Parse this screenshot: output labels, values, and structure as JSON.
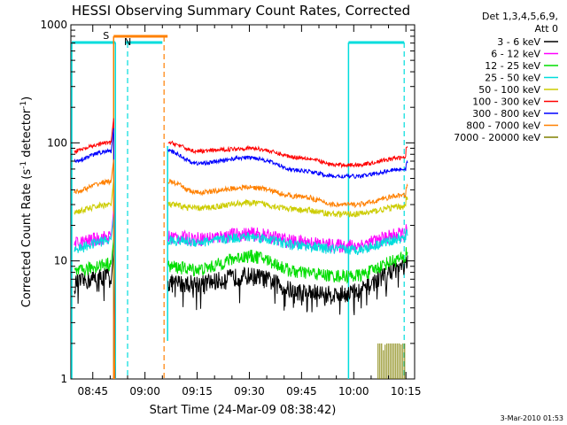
{
  "chart_data": {
    "type": "line",
    "title": "HESSI Observing Summary Count Rates, Corrected",
    "xlabel": "Start Time (24-Mar-09 08:38:42)",
    "ylabel_main": "Corrected Count Rate (s",
    "ylabel_sup1": "-1",
    "ylabel_mid": " detector",
    "ylabel_sup2": "-1",
    "ylabel_end": ")",
    "y_scale": "log",
    "ylim": [
      1,
      1000
    ],
    "xlim": [
      "08:38:42",
      "10:17:30"
    ],
    "x_ticks": [
      "08:45",
      "09:00",
      "09:15",
      "09:30",
      "09:45",
      "10:00",
      "10:15"
    ],
    "y_ticks": [
      "1",
      "10",
      "100",
      "1000"
    ],
    "legend_header": [
      "Det 1,3,4,5,6,9,",
      "Att 0"
    ],
    "legend_placement": "right",
    "series": [
      {
        "name": "3 - 6 keV",
        "color": "#000000",
        "levels": [
          6.5,
          7.5,
          6.5,
          6.5,
          7.5,
          5.5,
          5.2,
          5.5,
          9,
          9.5
        ]
      },
      {
        "name": "6 - 12 keV",
        "color": "#ff00ff",
        "levels": [
          14,
          16,
          16,
          15.5,
          17,
          14.5,
          13.5,
          13.5,
          17,
          18
        ]
      },
      {
        "name": "12 - 25 keV",
        "color": "#00dd00",
        "levels": [
          8,
          9.5,
          9,
          8.5,
          11,
          8,
          7.5,
          7.5,
          10.5,
          12
        ]
      },
      {
        "name": "25 - 50 keV",
        "color": "#00dddd",
        "levels": [
          12.5,
          15,
          15,
          14.5,
          16,
          13.5,
          12.5,
          12.5,
          15.5,
          17
        ]
      },
      {
        "name": "50 - 100 keV",
        "color": "#cccc00",
        "levels": [
          26,
          30,
          30,
          28,
          31,
          27,
          25,
          25,
          29,
          34
        ]
      },
      {
        "name": "100 - 300 keV",
        "color": "#ff0000",
        "levels": [
          85,
          100,
          100,
          85,
          90,
          75,
          65,
          65,
          75,
          92
        ]
      },
      {
        "name": "300 - 800 keV",
        "color": "#0000ff",
        "levels": [
          70,
          85,
          85,
          67,
          75,
          58,
          52,
          52,
          60,
          68
        ]
      },
      {
        "name": "800 - 7000 keV",
        "color": "#ff8000",
        "levels": [
          38,
          47,
          47,
          38,
          42,
          35,
          30,
          30,
          36,
          43
        ]
      },
      {
        "name": "7000 - 20000 keV",
        "color": "#808000",
        "levels": [
          1,
          1,
          1,
          1,
          1,
          1,
          1,
          1,
          1,
          1.8
        ]
      }
    ],
    "segment_times": [
      "08:38:42",
      "08:50:00",
      "09:06:30",
      "09:15:00",
      "09:30:00",
      "09:45:00",
      "09:55:00",
      "10:00:00",
      "10:15:00"
    ],
    "annotations": {
      "saa_label": "S",
      "night_label": "N",
      "saa_color": "#ff8000",
      "night_color": "#00dddd"
    },
    "footer_timestamp": "3-Mar-2010 01:53"
  }
}
